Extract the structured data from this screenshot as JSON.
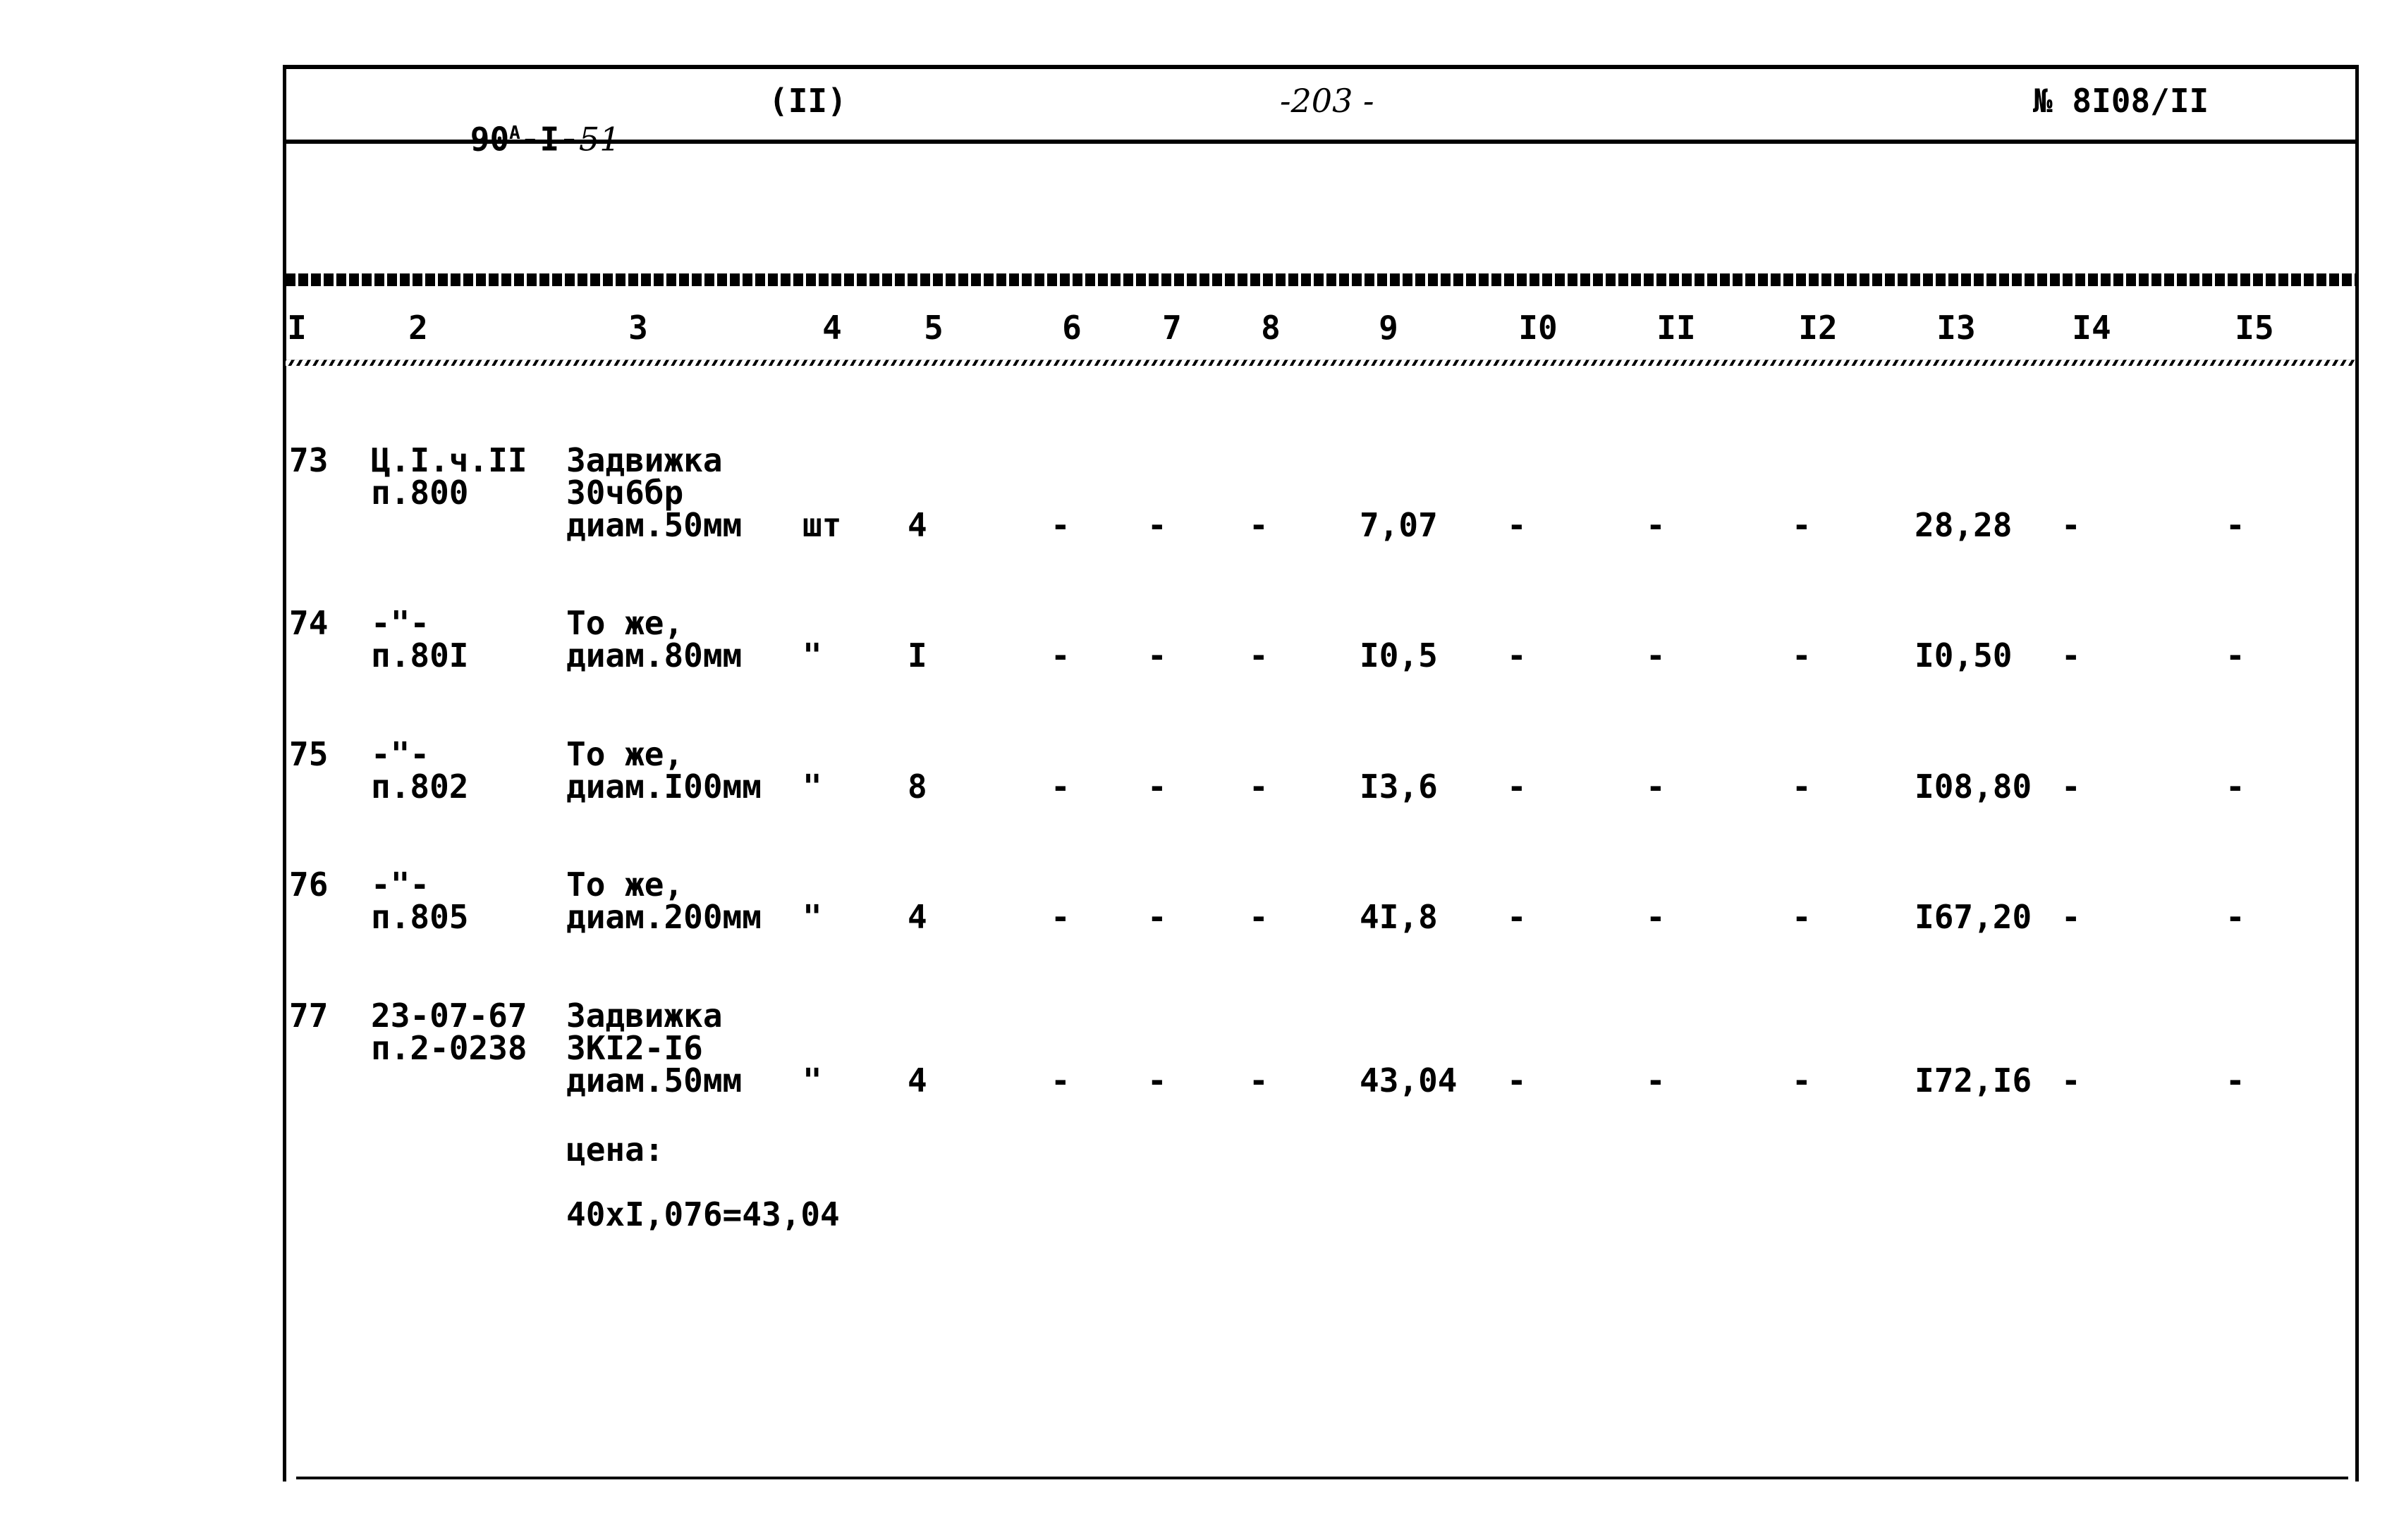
{
  "header": {
    "series": "90",
    "series_sup": "A",
    "series_mid": "-I-",
    "series_hand": "51",
    "part": "(II)",
    "page": "-203 -",
    "number": "№ 8I08/II"
  },
  "columns": [
    "I",
    "2",
    "3",
    "4",
    "5",
    "6",
    "7",
    "8",
    "9",
    "I0",
    "II",
    "I2",
    "I3",
    "I4",
    "I5"
  ],
  "rows": [
    {
      "no": "73",
      "code": [
        "Ц.I.ч.II",
        "п.800"
      ],
      "desc": [
        "Задвижка",
        "30ч6бр",
        "диам.50мм"
      ],
      "unit": "шт",
      "qty": "4",
      "c6": "-",
      "c7": "-",
      "c8": "-",
      "c9": "7,07",
      "c10": "-",
      "c11": "-",
      "c12": "-",
      "c13": "28,28",
      "c14": "-",
      "c15": "-"
    },
    {
      "no": "74",
      "code": [
        "-\"-",
        "п.80I"
      ],
      "desc": [
        "То же,",
        "диам.80мм"
      ],
      "unit": "\"",
      "qty": "I",
      "c6": "-",
      "c7": "-",
      "c8": "-",
      "c9": "I0,5",
      "c10": "-",
      "c11": "-",
      "c12": "-",
      "c13": "I0,50",
      "c14": "-",
      "c15": "-"
    },
    {
      "no": "75",
      "code": [
        "-\"-",
        "п.802"
      ],
      "desc": [
        "То же,",
        "диам.I00мм"
      ],
      "unit": "\"",
      "qty": "8",
      "c6": "-",
      "c7": "-",
      "c8": "-",
      "c9": "I3,6",
      "c10": "-",
      "c11": "-",
      "c12": "-",
      "c13": "I08,80",
      "c14": "-",
      "c15": "-"
    },
    {
      "no": "76",
      "code": [
        "-\"-",
        "п.805"
      ],
      "desc": [
        "То же,",
        "диам.200мм"
      ],
      "unit": "\"",
      "qty": "4",
      "c6": "-",
      "c7": "-",
      "c8": "-",
      "c9": "4I,8",
      "c10": "-",
      "c11": "-",
      "c12": "-",
      "c13": "I67,20",
      "c14": "-",
      "c15": "-"
    },
    {
      "no": "77",
      "code": [
        "23-07-67",
        "п.2-0238"
      ],
      "desc": [
        "Задвижка",
        "3КI2-I6",
        "диам.50мм"
      ],
      "unit": "\"",
      "qty": "4",
      "c6": "-",
      "c7": "-",
      "c8": "-",
      "c9": "43,04",
      "c10": "-",
      "c11": "-",
      "c12": "-",
      "c13": "I72,I6",
      "c14": "-",
      "c15": "-"
    }
  ],
  "note": {
    "label": "цена:",
    "calc": "40хI,076=43,04"
  }
}
